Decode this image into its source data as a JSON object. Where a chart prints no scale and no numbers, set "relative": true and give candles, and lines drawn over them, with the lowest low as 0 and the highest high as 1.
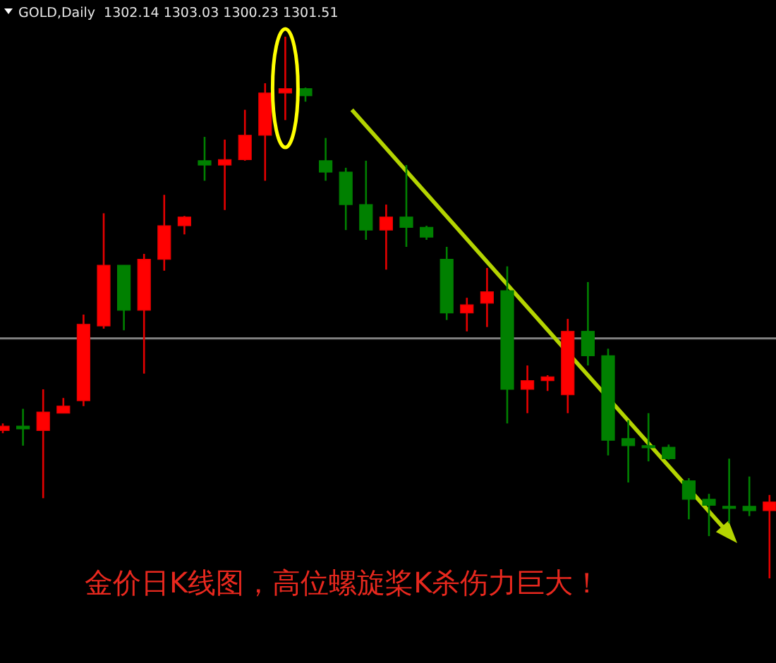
{
  "chart_data": {
    "type": "candlestick",
    "title": "GOLD,Daily  1302.14 1303.03 1300.23 1301.51",
    "relative": true,
    "annotations": [
      "金价日K线图，高位螺旋桨K杀伤力巨大！"
    ],
    "categories": [
      null,
      null,
      null,
      null,
      null,
      null,
      null,
      null,
      null,
      null,
      null,
      null,
      null,
      null,
      null,
      null,
      null,
      null,
      null,
      null,
      null,
      null,
      null,
      null,
      null,
      null,
      null,
      null,
      null,
      null,
      null,
      null,
      null,
      null,
      null,
      null,
      null,
      null,
      null
    ],
    "ohlc": [
      [
        0.273,
        0.286,
        0.268,
        0.281
      ],
      [
        0.281,
        0.313,
        0.245,
        0.276
      ],
      [
        0.273,
        0.349,
        0.148,
        0.307
      ],
      [
        0.305,
        0.333,
        0.305,
        0.318
      ],
      [
        0.328,
        0.487,
        0.318,
        0.469
      ],
      [
        0.466,
        0.674,
        0.461,
        0.578
      ],
      [
        0.578,
        0.578,
        0.458,
        0.495
      ],
      [
        0.495,
        0.599,
        0.378,
        0.589
      ],
      [
        0.589,
        0.708,
        0.568,
        0.651
      ],
      [
        0.651,
        0.669,
        0.635,
        0.667
      ],
      [
        0.771,
        0.815,
        0.734,
        0.763
      ],
      [
        0.763,
        0.81,
        0.68,
        0.773
      ],
      [
        0.773,
        0.865,
        0.771,
        0.818
      ],
      [
        0.818,
        0.914,
        0.734,
        0.896
      ],
      [
        0.896,
        1.0,
        0.846,
        0.904
      ],
      [
        0.904,
        0.906,
        0.88,
        0.891
      ],
      [
        0.771,
        0.813,
        0.734,
        0.75
      ],
      [
        0.75,
        0.758,
        0.643,
        0.69
      ],
      [
        0.69,
        0.771,
        0.625,
        0.643
      ],
      [
        0.643,
        0.69,
        0.57,
        0.667
      ],
      [
        0.667,
        0.763,
        0.612,
        0.648
      ],
      [
        0.648,
        0.651,
        0.625,
        0.63
      ],
      [
        0.589,
        0.612,
        0.477,
        0.49
      ],
      [
        0.49,
        0.518,
        0.456,
        0.505
      ],
      [
        0.508,
        0.573,
        0.464,
        0.529
      ],
      [
        0.531,
        0.576,
        0.286,
        0.349
      ],
      [
        0.349,
        0.393,
        0.305,
        0.365
      ],
      [
        0.365,
        0.375,
        0.346,
        0.372
      ],
      [
        0.339,
        0.479,
        0.305,
        0.456
      ],
      [
        0.456,
        0.547,
        0.393,
        0.411
      ],
      [
        0.411,
        0.424,
        0.227,
        0.255
      ],
      [
        0.258,
        0.292,
        0.177,
        0.245
      ],
      [
        0.245,
        0.305,
        0.216,
        0.242
      ],
      [
        0.242,
        0.247,
        0.219,
        0.221
      ],
      [
        0.18,
        0.185,
        0.109,
        0.146
      ],
      [
        0.146,
        0.156,
        0.078,
        0.135
      ],
      [
        0.133,
        0.221,
        0.102,
        0.13
      ],
      [
        0.133,
        0.188,
        0.115,
        0.125
      ],
      [
        0.125,
        0.154,
        0.0,
        0.141
      ]
    ],
    "colors": [
      "#ff0000",
      "#008000",
      "#ff0000",
      "#ff0000",
      "#ff0000",
      "#ff0000",
      "#008000",
      "#ff0000",
      "#ff0000",
      "#ff0000",
      "#008000",
      "#ff0000",
      "#ff0000",
      "#ff0000",
      "#ff0000",
      "#008000",
      "#008000",
      "#008000",
      "#008000",
      "#ff0000",
      "#008000",
      "#008000",
      "#008000",
      "#ff0000",
      "#ff0000",
      "#008000",
      "#ff0000",
      "#ff0000",
      "#ff0000",
      "#008000",
      "#008000",
      "#008000",
      "#008000",
      "#008000",
      "#008000",
      "#008000",
      "#008000",
      "#008000",
      "#ff0000"
    ],
    "ref_lines": [
      {
        "axis": "y",
        "value": 0.443,
        "color": "#808080"
      }
    ]
  }
}
